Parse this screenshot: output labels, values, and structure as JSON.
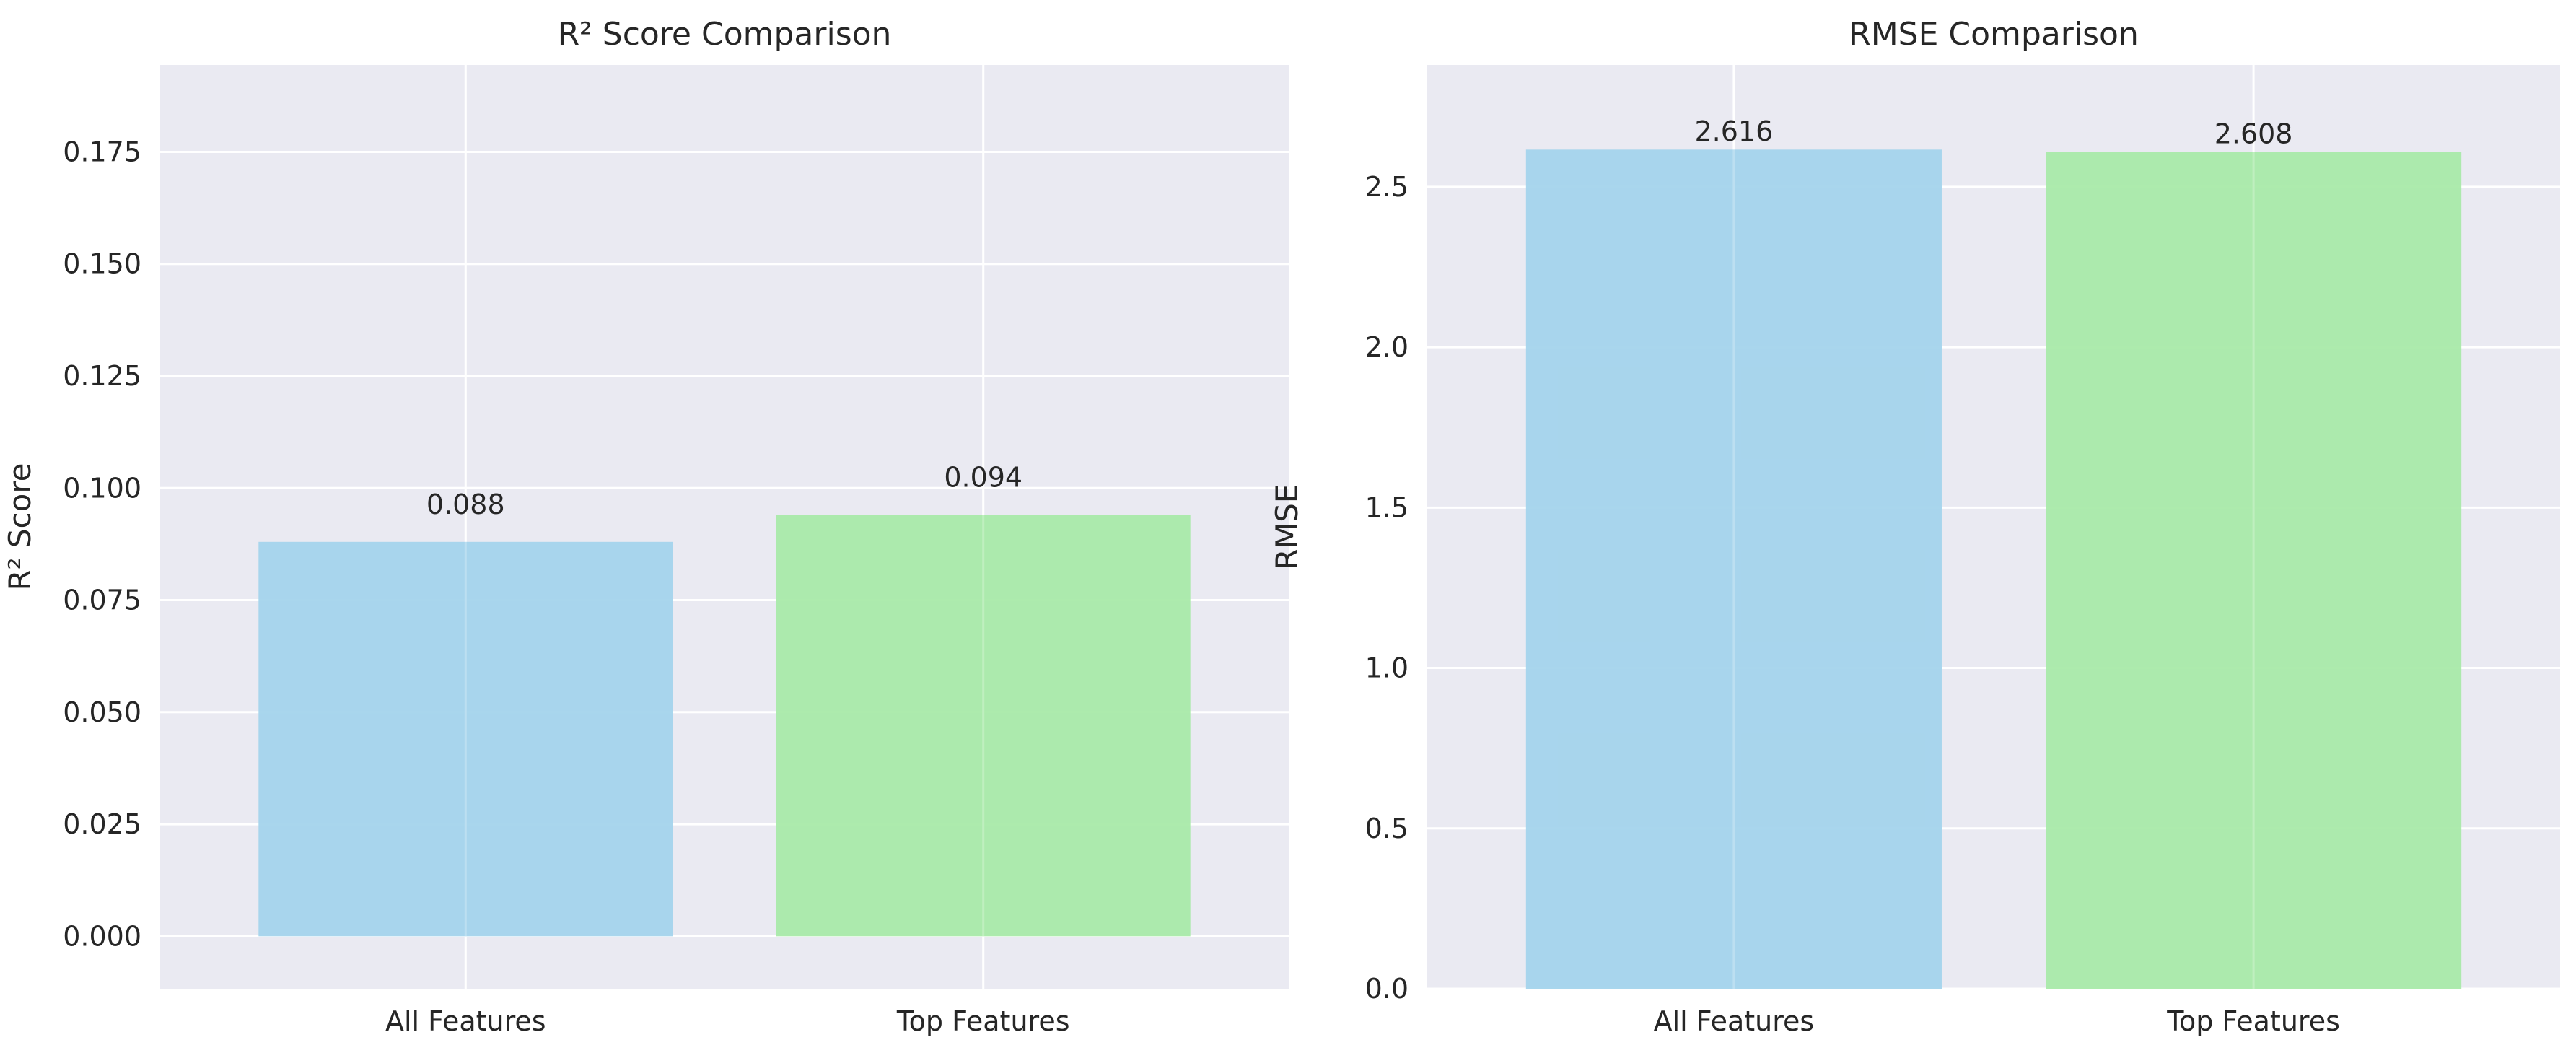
{
  "colors": {
    "background": "#eaeaf2",
    "grid": "#ffffff",
    "text": "#262626",
    "bar_all_features": "#a4d4ec",
    "bar_top_features": "#a9eaa9"
  },
  "chart_data": [
    {
      "type": "bar",
      "title": "R² Score Comparison",
      "xlabel": "",
      "ylabel": "R² Score",
      "categories": [
        "All Features",
        "Top Features"
      ],
      "values": [
        0.088,
        0.094
      ],
      "value_labels": [
        "0.088",
        "0.094"
      ],
      "ylim": [
        -0.0117,
        0.1944
      ],
      "yticks": [
        0.0,
        0.025,
        0.05,
        0.075,
        0.1,
        0.125,
        0.15,
        0.175
      ],
      "ytick_labels": [
        "0.000",
        "0.025",
        "0.050",
        "0.075",
        "0.100",
        "0.125",
        "0.150",
        "0.175"
      ],
      "grid": true,
      "bar_colors": [
        "#a4d4ec",
        "#a9eaa9"
      ]
    },
    {
      "type": "bar",
      "title": "RMSE Comparison",
      "xlabel": "",
      "ylabel": "RMSE",
      "categories": [
        "All Features",
        "Top Features"
      ],
      "values": [
        2.616,
        2.608
      ],
      "value_labels": [
        "2.616",
        "2.608"
      ],
      "ylim": [
        0.0,
        2.88
      ],
      "yticks": [
        0.0,
        0.5,
        1.0,
        1.5,
        2.0,
        2.5
      ],
      "ytick_labels": [
        "0.0",
        "0.5",
        "1.0",
        "1.5",
        "2.0",
        "2.5"
      ],
      "grid": true,
      "bar_colors": [
        "#a4d4ec",
        "#a9eaa9"
      ]
    }
  ]
}
